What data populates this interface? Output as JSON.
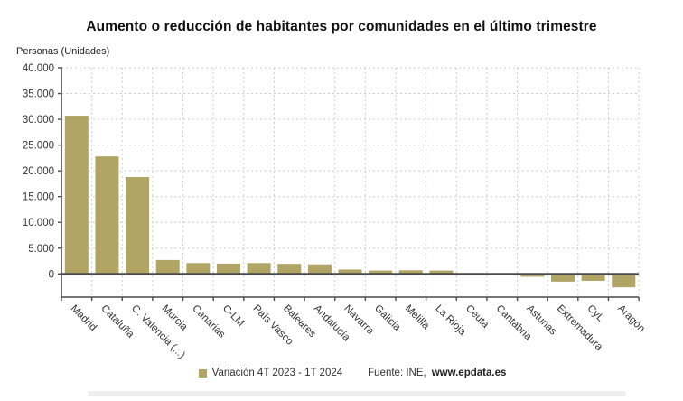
{
  "header": {
    "title": "Aumento o reducción de habitantes por comunidades en el último trimestre"
  },
  "chart": {
    "units_label": "Personas (Unidades)"
  },
  "legend": {
    "series_label": "Variación 4T 2023 - 1T 2024",
    "source_prefix": "Fuente: INE, ",
    "source_site": "www.epdata.es"
  },
  "colors": {
    "bar": "#b0a564",
    "axis": "#4a4a4a",
    "grid": "#cccccc",
    "text": "#333333",
    "title": "#111111"
  },
  "chart_data": {
    "type": "bar",
    "title": "Aumento o reducción de habitantes por comunidades en el último trimestre",
    "xlabel": "",
    "ylabel": "Personas (Unidades)",
    "legend_position": "bottom",
    "grid": true,
    "series_name": "Variación 4T 2023 - 1T 2024",
    "source": "Fuente: INE, www.epdata.es",
    "categories": [
      "Madrid",
      "Cataluña",
      "C. Valencia (...)",
      "Murcia",
      "Canarias",
      "C-LM",
      "País Vasco",
      "Baleares",
      "Andalucía",
      "Navarra",
      "Galicia",
      "Melilla",
      "La Rioja",
      "Ceuta",
      "Cantabria",
      "Asturias",
      "Extremadura",
      "CyL",
      "Aragón"
    ],
    "values": [
      30700,
      22800,
      18800,
      2700,
      2100,
      2000,
      2100,
      1950,
      1850,
      850,
      650,
      700,
      650,
      150,
      -150,
      -550,
      -1500,
      -1350,
      -2600
    ],
    "ylim": [
      -4500,
      40000
    ],
    "ytick_values": [
      0,
      5000,
      10000,
      15000,
      20000,
      25000,
      30000,
      35000,
      40000
    ],
    "ytick_labels": [
      "0",
      "5.000",
      "10.000",
      "15.000",
      "20.000",
      "25.000",
      "30.000",
      "35.000",
      "40.000"
    ]
  }
}
